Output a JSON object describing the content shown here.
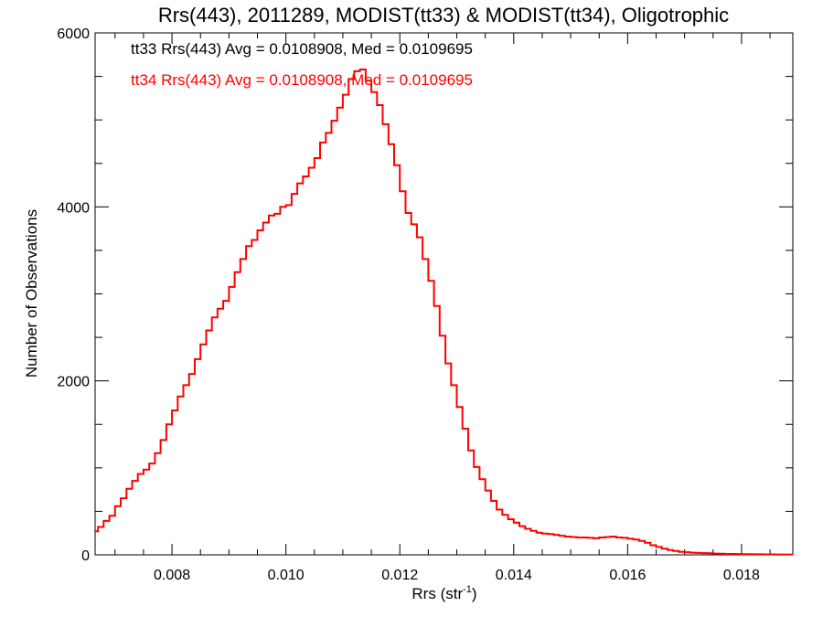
{
  "chart_data": {
    "type": "step",
    "title": "Rrs(443), 2011289, MODIST(tt33) & MODIST(tt34), Oligotrophic",
    "xlabel_main": "Rrs (str",
    "xlabel_sup": "-1",
    "xlabel_close": ")",
    "ylabel": "Number of Observations",
    "xlim": [
      0.00665,
      0.0189
    ],
    "ylim": [
      0,
      6000
    ],
    "x_ticks": [
      0.008,
      0.01,
      0.012,
      0.014,
      0.016,
      0.018
    ],
    "x_tick_labels": [
      "0.008",
      "0.010",
      "0.012",
      "0.014",
      "0.016",
      "0.018"
    ],
    "y_ticks": [
      0,
      2000,
      4000,
      6000
    ],
    "y_tick_labels": [
      "0",
      "2000",
      "4000",
      "6000"
    ],
    "annotations": [
      {
        "text": "tt33 Rrs(443) Avg = 0.0108908, Med = 0.0109695",
        "color": "#000000"
      },
      {
        "text": "tt34 Rrs(443) Avg = 0.0108908, Med = 0.0109695",
        "color": "#ff0000"
      }
    ],
    "series": [
      {
        "color": "#ff0000",
        "x": [
          0.00665,
          0.0067,
          0.0068,
          0.0069,
          0.007,
          0.0071,
          0.0072,
          0.0073,
          0.0074,
          0.0075,
          0.0076,
          0.0077,
          0.0078,
          0.0079,
          0.008,
          0.0081,
          0.0082,
          0.0083,
          0.0084,
          0.0085,
          0.0086,
          0.0087,
          0.0088,
          0.0089,
          0.009,
          0.0091,
          0.0092,
          0.0093,
          0.0094,
          0.0095,
          0.0096,
          0.0097,
          0.0098,
          0.0099,
          0.01,
          0.0101,
          0.0102,
          0.0103,
          0.0104,
          0.0105,
          0.0106,
          0.0107,
          0.0108,
          0.0109,
          0.011,
          0.0111,
          0.0112,
          0.0113,
          0.0114,
          0.0115,
          0.0116,
          0.0117,
          0.0118,
          0.0119,
          0.012,
          0.0121,
          0.0122,
          0.0123,
          0.0124,
          0.0125,
          0.0126,
          0.0127,
          0.0128,
          0.0129,
          0.013,
          0.0131,
          0.0132,
          0.0133,
          0.0134,
          0.0135,
          0.0136,
          0.0137,
          0.0138,
          0.0139,
          0.014,
          0.0141,
          0.0142,
          0.0143,
          0.0144,
          0.0145,
          0.0146,
          0.0147,
          0.0148,
          0.0149,
          0.015,
          0.0151,
          0.0152,
          0.0153,
          0.0154,
          0.0155,
          0.0156,
          0.0157,
          0.0158,
          0.0159,
          0.016,
          0.0161,
          0.0162,
          0.0163,
          0.0164,
          0.0165,
          0.0166,
          0.0167,
          0.0168,
          0.0169,
          0.017,
          0.0171,
          0.0172,
          0.0173,
          0.0174,
          0.0175,
          0.0176,
          0.0177,
          0.0178,
          0.0179,
          0.018,
          0.0181,
          0.0182,
          0.0183,
          0.0184,
          0.0185,
          0.0186,
          0.0187,
          0.0188
        ],
        "y": [
          270,
          320,
          390,
          450,
          560,
          650,
          760,
          850,
          930,
          980,
          1050,
          1170,
          1320,
          1500,
          1660,
          1820,
          1950,
          2080,
          2250,
          2420,
          2580,
          2730,
          2830,
          2920,
          3080,
          3250,
          3400,
          3550,
          3620,
          3730,
          3820,
          3900,
          3920,
          4000,
          4020,
          4150,
          4270,
          4350,
          4450,
          4560,
          4740,
          4850,
          4990,
          5140,
          5290,
          5470,
          5560,
          5580,
          5450,
          5320,
          5170,
          4950,
          4720,
          4480,
          4180,
          3930,
          3800,
          3650,
          3400,
          3150,
          2860,
          2520,
          2200,
          1950,
          1700,
          1450,
          1200,
          1010,
          870,
          740,
          620,
          520,
          460,
          410,
          370,
          330,
          300,
          275,
          255,
          245,
          240,
          230,
          220,
          210,
          205,
          200,
          200,
          195,
          190,
          200,
          205,
          210,
          200,
          195,
          185,
          175,
          160,
          140,
          110,
          90,
          70,
          55,
          45,
          35,
          30,
          25,
          22,
          20,
          18,
          15,
          13,
          11,
          10,
          9,
          8,
          7,
          6,
          6,
          5,
          5,
          4,
          4,
          4
        ]
      }
    ]
  }
}
